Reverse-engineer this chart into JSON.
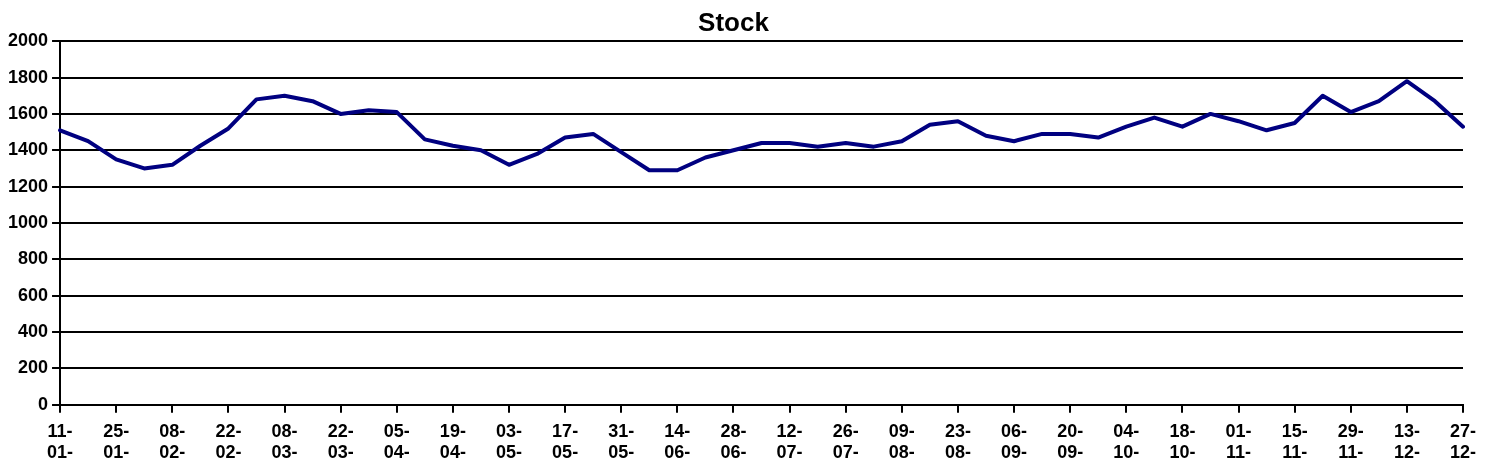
{
  "chart_data": {
    "type": "line",
    "title": "Stock",
    "categories": [
      "11- 01-",
      null,
      "25- 01-",
      null,
      "08- 02-",
      null,
      "22- 02-",
      null,
      "08- 03-",
      null,
      "22- 03-",
      null,
      "05- 04-",
      null,
      "19- 04-",
      null,
      "03- 05-",
      null,
      "17- 05-",
      null,
      "31- 05-",
      null,
      "14- 06-",
      null,
      "28- 06-",
      null,
      "12- 07-",
      null,
      "26- 07-",
      null,
      "09- 08-",
      null,
      "23- 08-",
      null,
      "06- 09-",
      null,
      "20- 09-",
      null,
      "04- 10-",
      null,
      "18- 10-",
      null,
      "01- 11-",
      null,
      "15- 11-",
      null,
      "29- 11-",
      null,
      "13- 12-",
      null,
      "27- 12-"
    ],
    "series": [
      {
        "color": "#000080",
        "values": [
          1510,
          1450,
          1350,
          1300,
          1320,
          1425,
          1520,
          1680,
          1700,
          1670,
          1600,
          1620,
          1610,
          1460,
          1425,
          1400,
          1320,
          1380,
          1470,
          1490,
          1390,
          1290,
          1290,
          1360,
          1400,
          1440,
          1440,
          1420,
          1440,
          1420,
          1450,
          1540,
          1560,
          1480,
          1450,
          1490,
          1490,
          1470,
          1530,
          1580,
          1530,
          1600,
          1560,
          1510,
          1550,
          1700,
          1610,
          1670,
          1780,
          1670,
          1530
        ]
      }
    ],
    "ylim": [
      0,
      2000
    ],
    "yticks": [
      0,
      200,
      400,
      600,
      800,
      1000,
      1200,
      1400,
      1600,
      1800,
      2000
    ],
    "grid": "y",
    "line_style": "solid"
  }
}
